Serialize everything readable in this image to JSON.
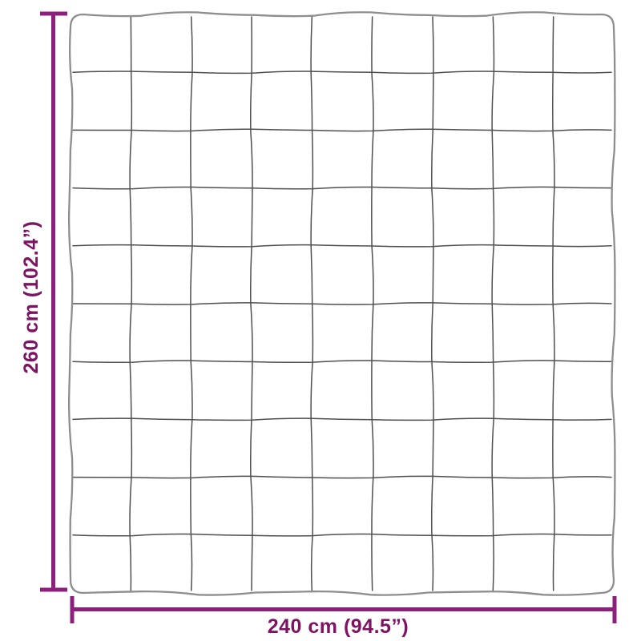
{
  "diagram": {
    "type": "product-dimension-diagram",
    "product": "quilted-blanket",
    "dimensions": {
      "height_label": "260 cm (102.4”)",
      "width_label": "240 cm (94.5”)"
    },
    "blanket": {
      "grid_columns": 9,
      "grid_rows": 10
    },
    "colors": {
      "background": "#ffffff",
      "dimension_line": "#8d1f7d",
      "dimension_text": "#7e1364",
      "blanket_outline": "#8e8e8e",
      "quilt_grid": "#4f4f4f"
    }
  }
}
